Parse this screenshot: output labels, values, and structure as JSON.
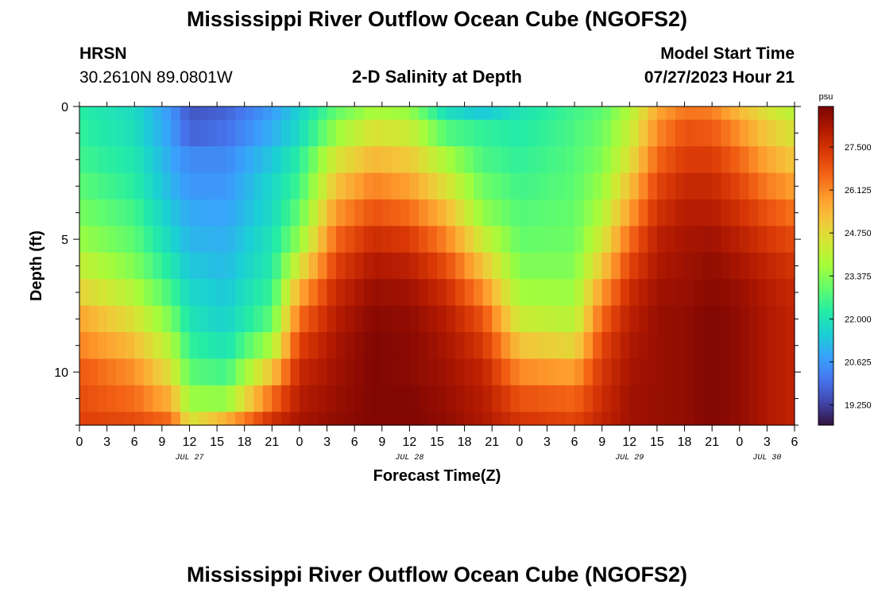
{
  "header": {
    "title": "Mississippi River Outflow Ocean Cube (NGOFS2)",
    "station": "HRSN",
    "coords": "30.2610N  89.0801W",
    "subtitle": "2-D Salinity at Depth",
    "model_start_label": "Model Start Time",
    "model_start_value": "07/27/2023 Hour 21"
  },
  "footer": {
    "title": "Mississippi River Outflow Ocean Cube (NGOFS2)"
  },
  "chart_data": {
    "type": "heatmap",
    "title": "2-D Salinity at Depth",
    "xlabel": "Forecast Time(Z)",
    "ylabel": "Depth (ft)",
    "x_start_hour": 0,
    "x_end_hour": 78,
    "x_tick_labels": [
      "0",
      "3",
      "6",
      "9",
      "12",
      "15",
      "18",
      "21",
      "0",
      "3",
      "6",
      "9",
      "12",
      "15",
      "18",
      "21",
      "0",
      "3",
      "6",
      "9",
      "12",
      "15",
      "18",
      "21",
      "0",
      "3",
      "6"
    ],
    "date_labels": [
      {
        "text": "JUL 27",
        "hour": 12
      },
      {
        "text": "JUL 28",
        "hour": 36
      },
      {
        "text": "JUL 29",
        "hour": 60
      },
      {
        "text": "JUL 30",
        "hour": 75
      }
    ],
    "ylim": [
      0,
      12
    ],
    "y_tick_labels": [
      {
        "text": "0",
        "value": 0
      },
      {
        "text": "5",
        "value": 5
      },
      {
        "text": "10",
        "value": 10
      }
    ],
    "depth_levels_ft": [
      0,
      1,
      2,
      3,
      4,
      5,
      6,
      7,
      8,
      9,
      10,
      11,
      12
    ],
    "colorbar": {
      "unit": "psu",
      "min": 18.6,
      "max": 28.8,
      "ticks": [
        "27.500",
        "26.125",
        "24.750",
        "23.375",
        "22.000",
        "20.625",
        "19.250"
      ],
      "tick_values": [
        27.5,
        26.125,
        24.75,
        23.375,
        22.0,
        20.625,
        19.25
      ],
      "colormap": [
        "#30123b",
        "#4145ab",
        "#4675ed",
        "#39a2fc",
        "#1bcfd4",
        "#24eca6",
        "#61fc6c",
        "#a4fc3b",
        "#d1e834",
        "#f3c63a",
        "#fe9b2d",
        "#f36315",
        "#d93806",
        "#b11901",
        "#7a0403"
      ]
    },
    "salinity_profiles": [
      {
        "hour": 0,
        "values": [
          22.3,
          22.4,
          22.6,
          22.9,
          23.2,
          23.6,
          24.2,
          24.9,
          25.7,
          26.2,
          26.8,
          27.0,
          27.2
        ]
      },
      {
        "hour": 6,
        "values": [
          21.8,
          21.9,
          22.1,
          22.3,
          22.6,
          22.9,
          23.3,
          23.9,
          24.6,
          25.3,
          26.0,
          26.5,
          27.0
        ]
      },
      {
        "hour": 10,
        "values": [
          20.6,
          20.7,
          20.9,
          21.1,
          21.4,
          21.7,
          22.1,
          22.6,
          23.2,
          23.9,
          24.6,
          25.5,
          26.5
        ]
      },
      {
        "hour": 12,
        "values": [
          19.6,
          19.8,
          20.4,
          20.6,
          20.9,
          21.1,
          21.4,
          21.7,
          22.0,
          22.4,
          22.9,
          23.6,
          24.5
        ]
      },
      {
        "hour": 16,
        "values": [
          19.8,
          20.0,
          20.4,
          20.6,
          20.8,
          21.0,
          21.2,
          21.4,
          21.6,
          22.0,
          22.6,
          23.5,
          25.5
        ]
      },
      {
        "hour": 21,
        "values": [
          20.7,
          21.0,
          21.4,
          21.7,
          21.8,
          22.0,
          22.2,
          22.5,
          22.9,
          23.8,
          25.2,
          26.5,
          27.5
        ]
      },
      {
        "hour": 24,
        "values": [
          21.6,
          21.8,
          22.3,
          22.6,
          23.0,
          23.5,
          24.5,
          25.6,
          26.5,
          27.2,
          27.7,
          28.0,
          28.2
        ]
      },
      {
        "hour": 28,
        "values": [
          23.0,
          23.6,
          24.5,
          25.2,
          25.9,
          26.6,
          27.2,
          27.7,
          28.0,
          28.2,
          28.3,
          28.4,
          28.5
        ]
      },
      {
        "hour": 32,
        "values": [
          23.8,
          24.6,
          25.4,
          26.2,
          26.9,
          27.6,
          28.1,
          28.4,
          28.6,
          28.7,
          28.7,
          28.7,
          28.7
        ]
      },
      {
        "hour": 36,
        "values": [
          23.6,
          24.3,
          25.1,
          25.8,
          26.5,
          27.3,
          27.9,
          28.3,
          28.5,
          28.6,
          28.6,
          28.7,
          28.7
        ]
      },
      {
        "hour": 40,
        "values": [
          21.9,
          22.8,
          23.8,
          24.6,
          25.4,
          26.2,
          27.0,
          27.6,
          28.0,
          28.2,
          28.3,
          28.4,
          28.5
        ]
      },
      {
        "hour": 44,
        "values": [
          21.4,
          22.4,
          22.7,
          23.1,
          23.5,
          24.3,
          25.2,
          26.1,
          26.9,
          27.4,
          27.8,
          28.0,
          28.1
        ]
      },
      {
        "hour": 48,
        "values": [
          22.0,
          22.2,
          22.4,
          22.6,
          22.8,
          23.0,
          23.3,
          23.7,
          24.3,
          25.2,
          26.1,
          26.9,
          27.4
        ]
      },
      {
        "hour": 54,
        "values": [
          22.6,
          22.7,
          22.8,
          22.9,
          23.0,
          23.1,
          23.3,
          23.6,
          24.0,
          24.8,
          25.8,
          26.6,
          27.1
        ]
      },
      {
        "hour": 57,
        "values": [
          22.9,
          23.1,
          23.3,
          23.6,
          23.9,
          24.4,
          25.1,
          25.9,
          26.6,
          27.1,
          27.4,
          27.6,
          27.8
        ]
      },
      {
        "hour": 60,
        "values": [
          23.9,
          24.2,
          24.6,
          25.2,
          25.8,
          26.5,
          27.1,
          27.6,
          27.9,
          28.1,
          28.2,
          28.3,
          28.3
        ]
      },
      {
        "hour": 63,
        "values": [
          25.7,
          26.1,
          26.6,
          27.1,
          27.5,
          27.9,
          28.1,
          28.3,
          28.4,
          28.4,
          28.4,
          28.4,
          28.4
        ]
      },
      {
        "hour": 66,
        "values": [
          26.4,
          26.9,
          27.3,
          27.7,
          28.0,
          28.2,
          28.3,
          28.4,
          28.5,
          28.5,
          28.5,
          28.5,
          28.5
        ]
      },
      {
        "hour": 69,
        "values": [
          26.3,
          26.8,
          27.3,
          27.7,
          28.0,
          28.3,
          28.5,
          28.6,
          28.7,
          28.7,
          28.7,
          28.7,
          28.7
        ]
      },
      {
        "hour": 72,
        "values": [
          25.4,
          26.0,
          26.6,
          27.1,
          27.5,
          27.9,
          28.2,
          28.4,
          28.5,
          28.5,
          28.5,
          28.5,
          28.5
        ]
      },
      {
        "hour": 75,
        "values": [
          24.6,
          25.1,
          25.7,
          26.3,
          26.9,
          27.4,
          27.8,
          28.0,
          28.1,
          28.1,
          28.1,
          28.1,
          28.1
        ]
      },
      {
        "hour": 78,
        "values": [
          24.0,
          24.5,
          25.1,
          25.8,
          26.4,
          27.0,
          27.4,
          27.7,
          27.8,
          27.8,
          27.8,
          27.8,
          27.8
        ]
      }
    ]
  }
}
